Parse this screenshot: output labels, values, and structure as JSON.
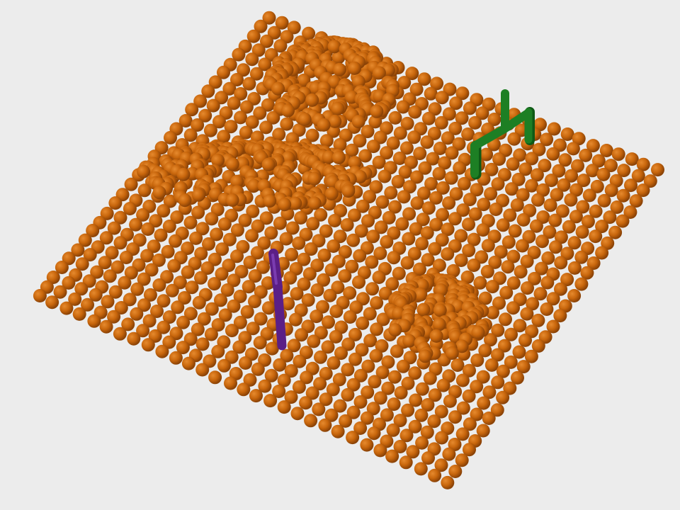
{
  "scene": {
    "background_color": "#ececec",
    "particle_color": "#c8660c",
    "particle_highlight_color": "#e68a2e",
    "particle_shadow_color": "#8a4206",
    "objects": [
      {
        "name": "particle-bed",
        "kind": "granular-surface",
        "color": "#c8660c"
      },
      {
        "name": "green-gripper",
        "kind": "rigid-gripper",
        "color": "#1d7f24"
      },
      {
        "name": "purple-stick",
        "kind": "rigid-rod",
        "color": "#5b1f86"
      }
    ],
    "mounds": [
      {
        "name": "top-mound"
      },
      {
        "name": "left-mound"
      },
      {
        "name": "bottom-right-mound"
      }
    ]
  }
}
